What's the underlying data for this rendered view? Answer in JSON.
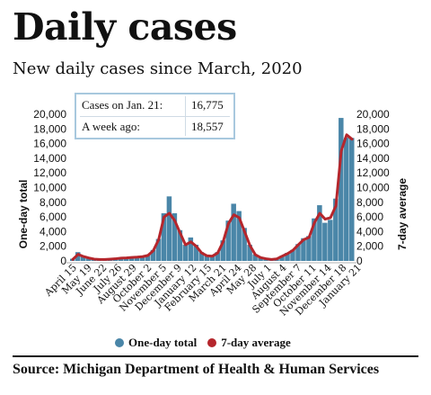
{
  "header": {
    "title": "Daily cases",
    "subtitle": "New daily cases since March, 2020"
  },
  "info_box": {
    "rows": [
      {
        "label": "Cases on Jan. 21:",
        "value": "16,775"
      },
      {
        "label": "A week ago:",
        "value": "18,557"
      }
    ]
  },
  "legend": {
    "items": [
      {
        "label": "One-day total",
        "color": "#4a86a8"
      },
      {
        "label": "7-day average",
        "color": "#b5262c"
      }
    ]
  },
  "source": "Source:  Michigan Department of Health & Human Services",
  "colors": {
    "bars": "#4a86a8",
    "average_line": "#b5262c"
  },
  "chart_data": {
    "type": "bar",
    "ylabel_left": "One-day total",
    "ylabel_right": "7-day average",
    "ylim": [
      0,
      20000
    ],
    "y_ticks": [
      "0",
      "2,000",
      "4,000",
      "6,000",
      "8,000",
      "10,000",
      "12,000",
      "14,000",
      "16,000",
      "18,000",
      "20,000"
    ],
    "x_tick_labels": [
      "April 15",
      "May 19",
      "June 22",
      "July 26",
      "August 29",
      "October 2",
      "November 5",
      "December 9",
      "January 12",
      "February 15",
      "March 21",
      "April 24",
      "May 28",
      "July 1",
      "August 4",
      "September 7",
      "October 11",
      "November 14",
      "December 18",
      "January 21"
    ],
    "series": [
      {
        "name": "One-day total",
        "values": [
          300,
          1200,
          700,
          400,
          250,
          200,
          200,
          250,
          300,
          400,
          450,
          500,
          550,
          600,
          800,
          1500,
          3000,
          6500,
          8800,
          6500,
          4200,
          2200,
          3200,
          2200,
          1200,
          800,
          700,
          1200,
          2800,
          5500,
          7800,
          6800,
          4500,
          2200,
          900,
          500,
          300,
          200,
          300,
          700,
          1100,
          1500,
          2300,
          3100,
          3400,
          5800,
          7600,
          5200,
          5600,
          8500,
          19500,
          16800,
          16775
        ]
      },
      {
        "name": "7-day average",
        "values": [
          200,
          900,
          600,
          400,
          250,
          200,
          200,
          250,
          300,
          380,
          420,
          480,
          520,
          580,
          750,
          1400,
          2900,
          6000,
          6500,
          5500,
          3800,
          2200,
          2600,
          2000,
          1100,
          700,
          650,
          1100,
          2600,
          5100,
          6300,
          5900,
          4000,
          2100,
          850,
          450,
          300,
          200,
          280,
          650,
          1000,
          1450,
          2200,
          2900,
          3200,
          5200,
          6500,
          5700,
          5900,
          7500,
          15000,
          17200,
          16600
        ]
      }
    ]
  }
}
